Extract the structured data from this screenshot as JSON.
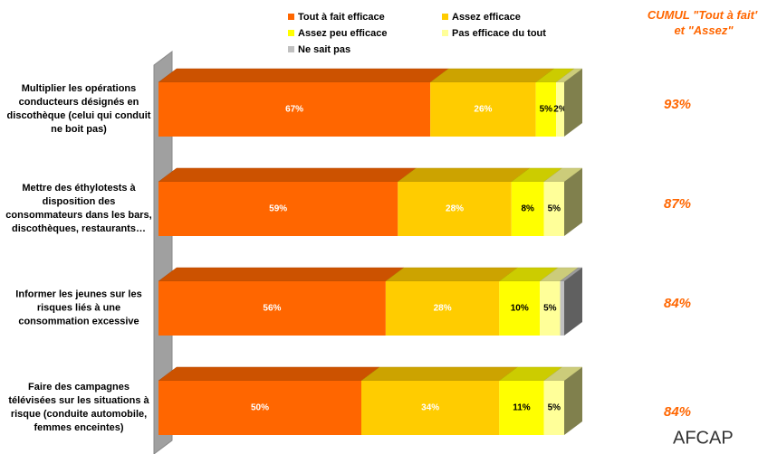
{
  "chart_data": {
    "type": "bar",
    "orientation": "horizontal",
    "stacked": true,
    "categories": [
      "Multiplier les opérations conducteurs désignés en discothèque (celui qui conduit ne boit pas)",
      "Mettre des éthylotests à disposition des consommateurs dans les bars, discothèques, restaurants…",
      "Informer les jeunes sur les risques liés à une consommation excessive",
      "Faire des campagnes télévisées sur les situations à risque (conduite automobile, femmes enceintes)"
    ],
    "xlim": [
      0,
      100
    ],
    "series": [
      {
        "name": "Tout à fait efficace",
        "color": "#FF6600",
        "label_color": "#FFFFFF",
        "values": [
          67,
          59,
          56,
          50
        ],
        "value_labels": [
          "67%",
          "59%",
          "56%",
          "50%"
        ]
      },
      {
        "name": "Assez efficace",
        "color": "#FFCC00",
        "label_color": "#FFFFFF",
        "values": [
          26,
          28,
          28,
          34
        ],
        "value_labels": [
          "26%",
          "28%",
          "28%",
          "34%"
        ]
      },
      {
        "name": "Assez peu efficace",
        "color": "#FFFF00",
        "label_color": "#000000",
        "values": [
          5,
          8,
          10,
          11
        ],
        "value_labels": [
          "5%",
          "8%",
          "10%",
          "11%"
        ]
      },
      {
        "name": "Pas efficace du tout",
        "color": "#FFFF99",
        "label_color": "#000000",
        "values": [
          2,
          5,
          5,
          5
        ],
        "value_labels": [
          "2%",
          "5%",
          "5%",
          "5%"
        ]
      },
      {
        "name": "Ne sait pas",
        "color": "#C0C0C0",
        "label_color": "#000000",
        "values": [
          0,
          0,
          1,
          0
        ]
      }
    ],
    "cumul": {
      "title": "CUMUL \"Tout à fait\" et \"Assez\"",
      "color": "#FF6600",
      "values": [
        93,
        87,
        84,
        84
      ],
      "value_labels": [
        "93%",
        "87%",
        "84%",
        "84%"
      ]
    },
    "logo": "AFCAP"
  }
}
